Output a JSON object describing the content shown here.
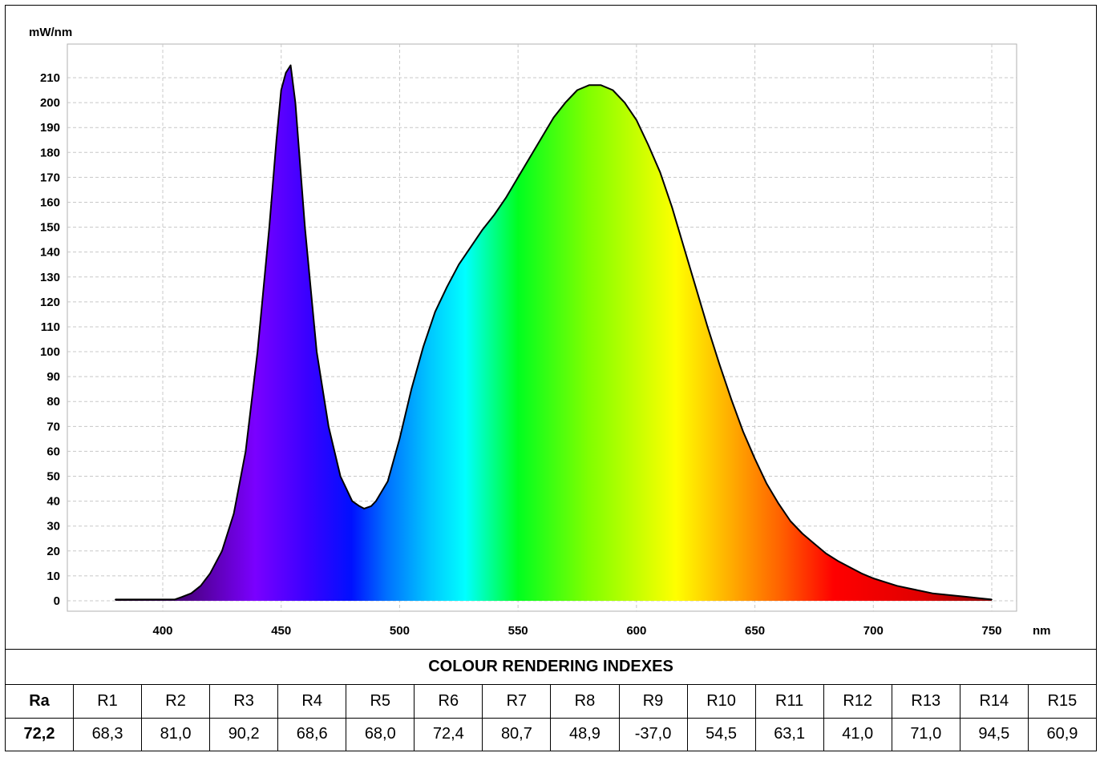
{
  "chart_data": {
    "type": "area",
    "ylabel": "mW/nm",
    "xlabel": "nm",
    "xlim": [
      370,
      760
    ],
    "ylim": [
      0,
      220
    ],
    "x_ticks": [
      400,
      450,
      500,
      550,
      600,
      650,
      700,
      750
    ],
    "y_ticks": [
      0,
      10,
      20,
      30,
      40,
      50,
      60,
      70,
      80,
      90,
      100,
      110,
      120,
      130,
      140,
      150,
      160,
      170,
      180,
      190,
      200,
      210
    ],
    "grid": true,
    "fill": "visible-spectrum-gradient",
    "series": [
      {
        "x": [
          380,
          390,
          400,
          405,
          408,
          412,
          416,
          420,
          425,
          430,
          435,
          440,
          445,
          448,
          450,
          452,
          454,
          456,
          460,
          465,
          470,
          475,
          480,
          483,
          485,
          488,
          490,
          495,
          500,
          505,
          510,
          515,
          520,
          525,
          530,
          535,
          540,
          545,
          550,
          555,
          560,
          565,
          570,
          575,
          580,
          585,
          590,
          595,
          600,
          605,
          610,
          615,
          620,
          625,
          630,
          635,
          640,
          645,
          650,
          655,
          660,
          665,
          670,
          675,
          680,
          685,
          690,
          695,
          700,
          705,
          710,
          715,
          720,
          725,
          730,
          735,
          740,
          745,
          750
        ],
        "y": [
          0.5,
          0.5,
          0.5,
          0.5,
          1.5,
          3,
          6,
          11,
          20,
          35,
          60,
          100,
          150,
          185,
          205,
          212,
          215,
          200,
          150,
          100,
          70,
          50,
          40,
          38,
          37,
          38,
          40,
          48,
          65,
          85,
          102,
          116,
          126,
          135,
          142,
          149,
          155,
          162,
          170,
          178,
          186,
          194,
          200,
          205,
          207,
          207,
          205,
          200,
          193,
          183,
          172,
          158,
          142,
          126,
          110,
          95,
          81,
          68,
          57,
          47,
          39,
          32,
          27,
          23,
          19,
          16,
          13.5,
          11,
          9,
          7.5,
          6,
          5,
          4,
          3,
          2.5,
          2,
          1.5,
          1,
          0.5
        ]
      }
    ]
  },
  "cri": {
    "title": "COLOUR RENDERING INDEXES",
    "headers": [
      "Ra",
      "R1",
      "R2",
      "R3",
      "R4",
      "R5",
      "R6",
      "R7",
      "R8",
      "R9",
      "R10",
      "R11",
      "R12",
      "R13",
      "R14",
      "R15"
    ],
    "values": [
      "72,2",
      "68,3",
      "81,0",
      "90,2",
      "68,6",
      "68,0",
      "72,4",
      "80,7",
      "48,9",
      "-37,0",
      "54,5",
      "63,1",
      "41,0",
      "71,0",
      "94,5",
      "60,9"
    ]
  }
}
